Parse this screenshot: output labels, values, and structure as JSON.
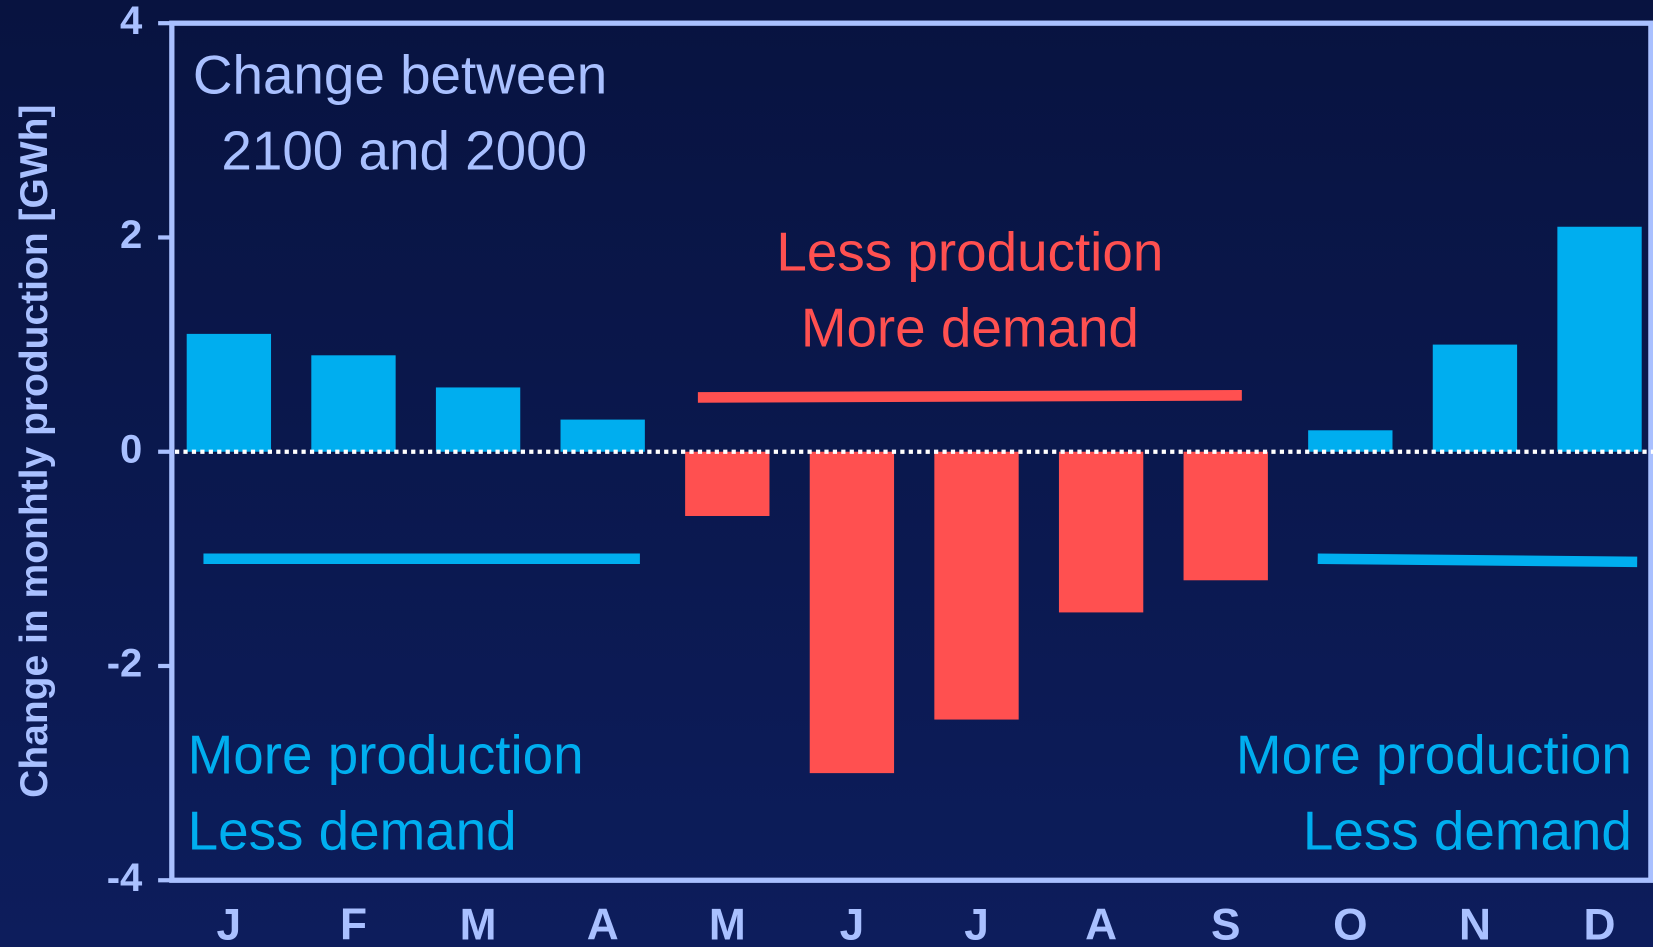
{
  "chart_data": {
    "type": "bar",
    "y_axis_label": "Change in monhtly production [GWh]",
    "categories": [
      "J",
      "F",
      "M",
      "A",
      "M",
      "J",
      "J",
      "A",
      "S",
      "O",
      "N",
      "D"
    ],
    "values": [
      1.1,
      0.9,
      0.6,
      0.3,
      -0.6,
      -3.0,
      -2.5,
      -1.5,
      -1.2,
      0.2,
      1.0,
      2.1
    ],
    "colors": {
      "positive": "#00aeef",
      "negative": "#ff5050"
    },
    "ylim": [
      -4,
      4
    ],
    "yticks": [
      -4,
      -2,
      0,
      2,
      4
    ],
    "annotations": {
      "title": [
        "Change between",
        "2100 and 2000"
      ],
      "summer": [
        "Less production",
        "More demand"
      ],
      "spring": [
        "More production",
        "Less demand"
      ],
      "autumn": [
        "More production",
        "Less demand"
      ]
    }
  }
}
